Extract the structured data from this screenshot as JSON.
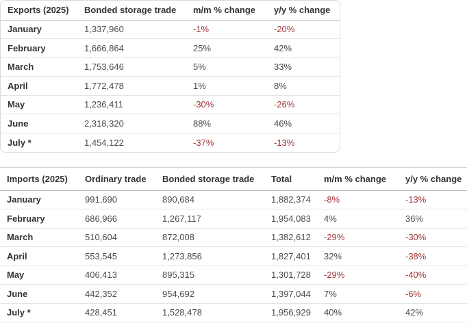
{
  "colors": {
    "negative": "#a13438",
    "text": "#4b4b4b",
    "heading": "#333333"
  },
  "footnote_marker": "*",
  "chart_data": [
    {
      "type": "table",
      "title": "Exports (2025)",
      "columns": [
        "Exports (2025)",
        "Bonded storage trade",
        "m/m % change",
        "y/y % change"
      ],
      "rows": [
        [
          "January",
          "1,337,960",
          "-1%",
          "-20%"
        ],
        [
          "February",
          "1,666,864",
          "25%",
          "42%"
        ],
        [
          "March",
          "1,753,646",
          "5%",
          "33%"
        ],
        [
          "April",
          "1,772,478",
          "1%",
          "8%"
        ],
        [
          "May",
          "1,236,411",
          "-30%",
          "-26%"
        ],
        [
          "June",
          "2,318,320",
          "88%",
          "46%"
        ],
        [
          "July *",
          "1,454,122",
          "-37%",
          "-13%"
        ]
      ]
    },
    {
      "type": "table",
      "title": "Imports (2025)",
      "columns": [
        "Imports (2025)",
        "Ordinary trade",
        "Bonded storage trade",
        "Total",
        "m/m % change",
        "y/y % change"
      ],
      "rows": [
        [
          "January",
          "991,690",
          "890,684",
          "1,882,374",
          "-8%",
          "-13%"
        ],
        [
          "February",
          "686,966",
          "1,267,117",
          "1,954,083",
          "4%",
          "36%"
        ],
        [
          "March",
          "510,604",
          "872,008",
          "1,382,612",
          "-29%",
          "-30%"
        ],
        [
          "April",
          "553,545",
          "1,273,856",
          "1,827,401",
          "32%",
          "-38%"
        ],
        [
          "May",
          "406,413",
          "895,315",
          "1,301,728",
          "-29%",
          "-40%"
        ],
        [
          "June",
          "442,352",
          "954,692",
          "1,397,044",
          "7%",
          "-6%"
        ],
        [
          "July *",
          "428,451",
          "1,528,478",
          "1,956,929",
          "40%",
          "42%"
        ]
      ]
    }
  ]
}
